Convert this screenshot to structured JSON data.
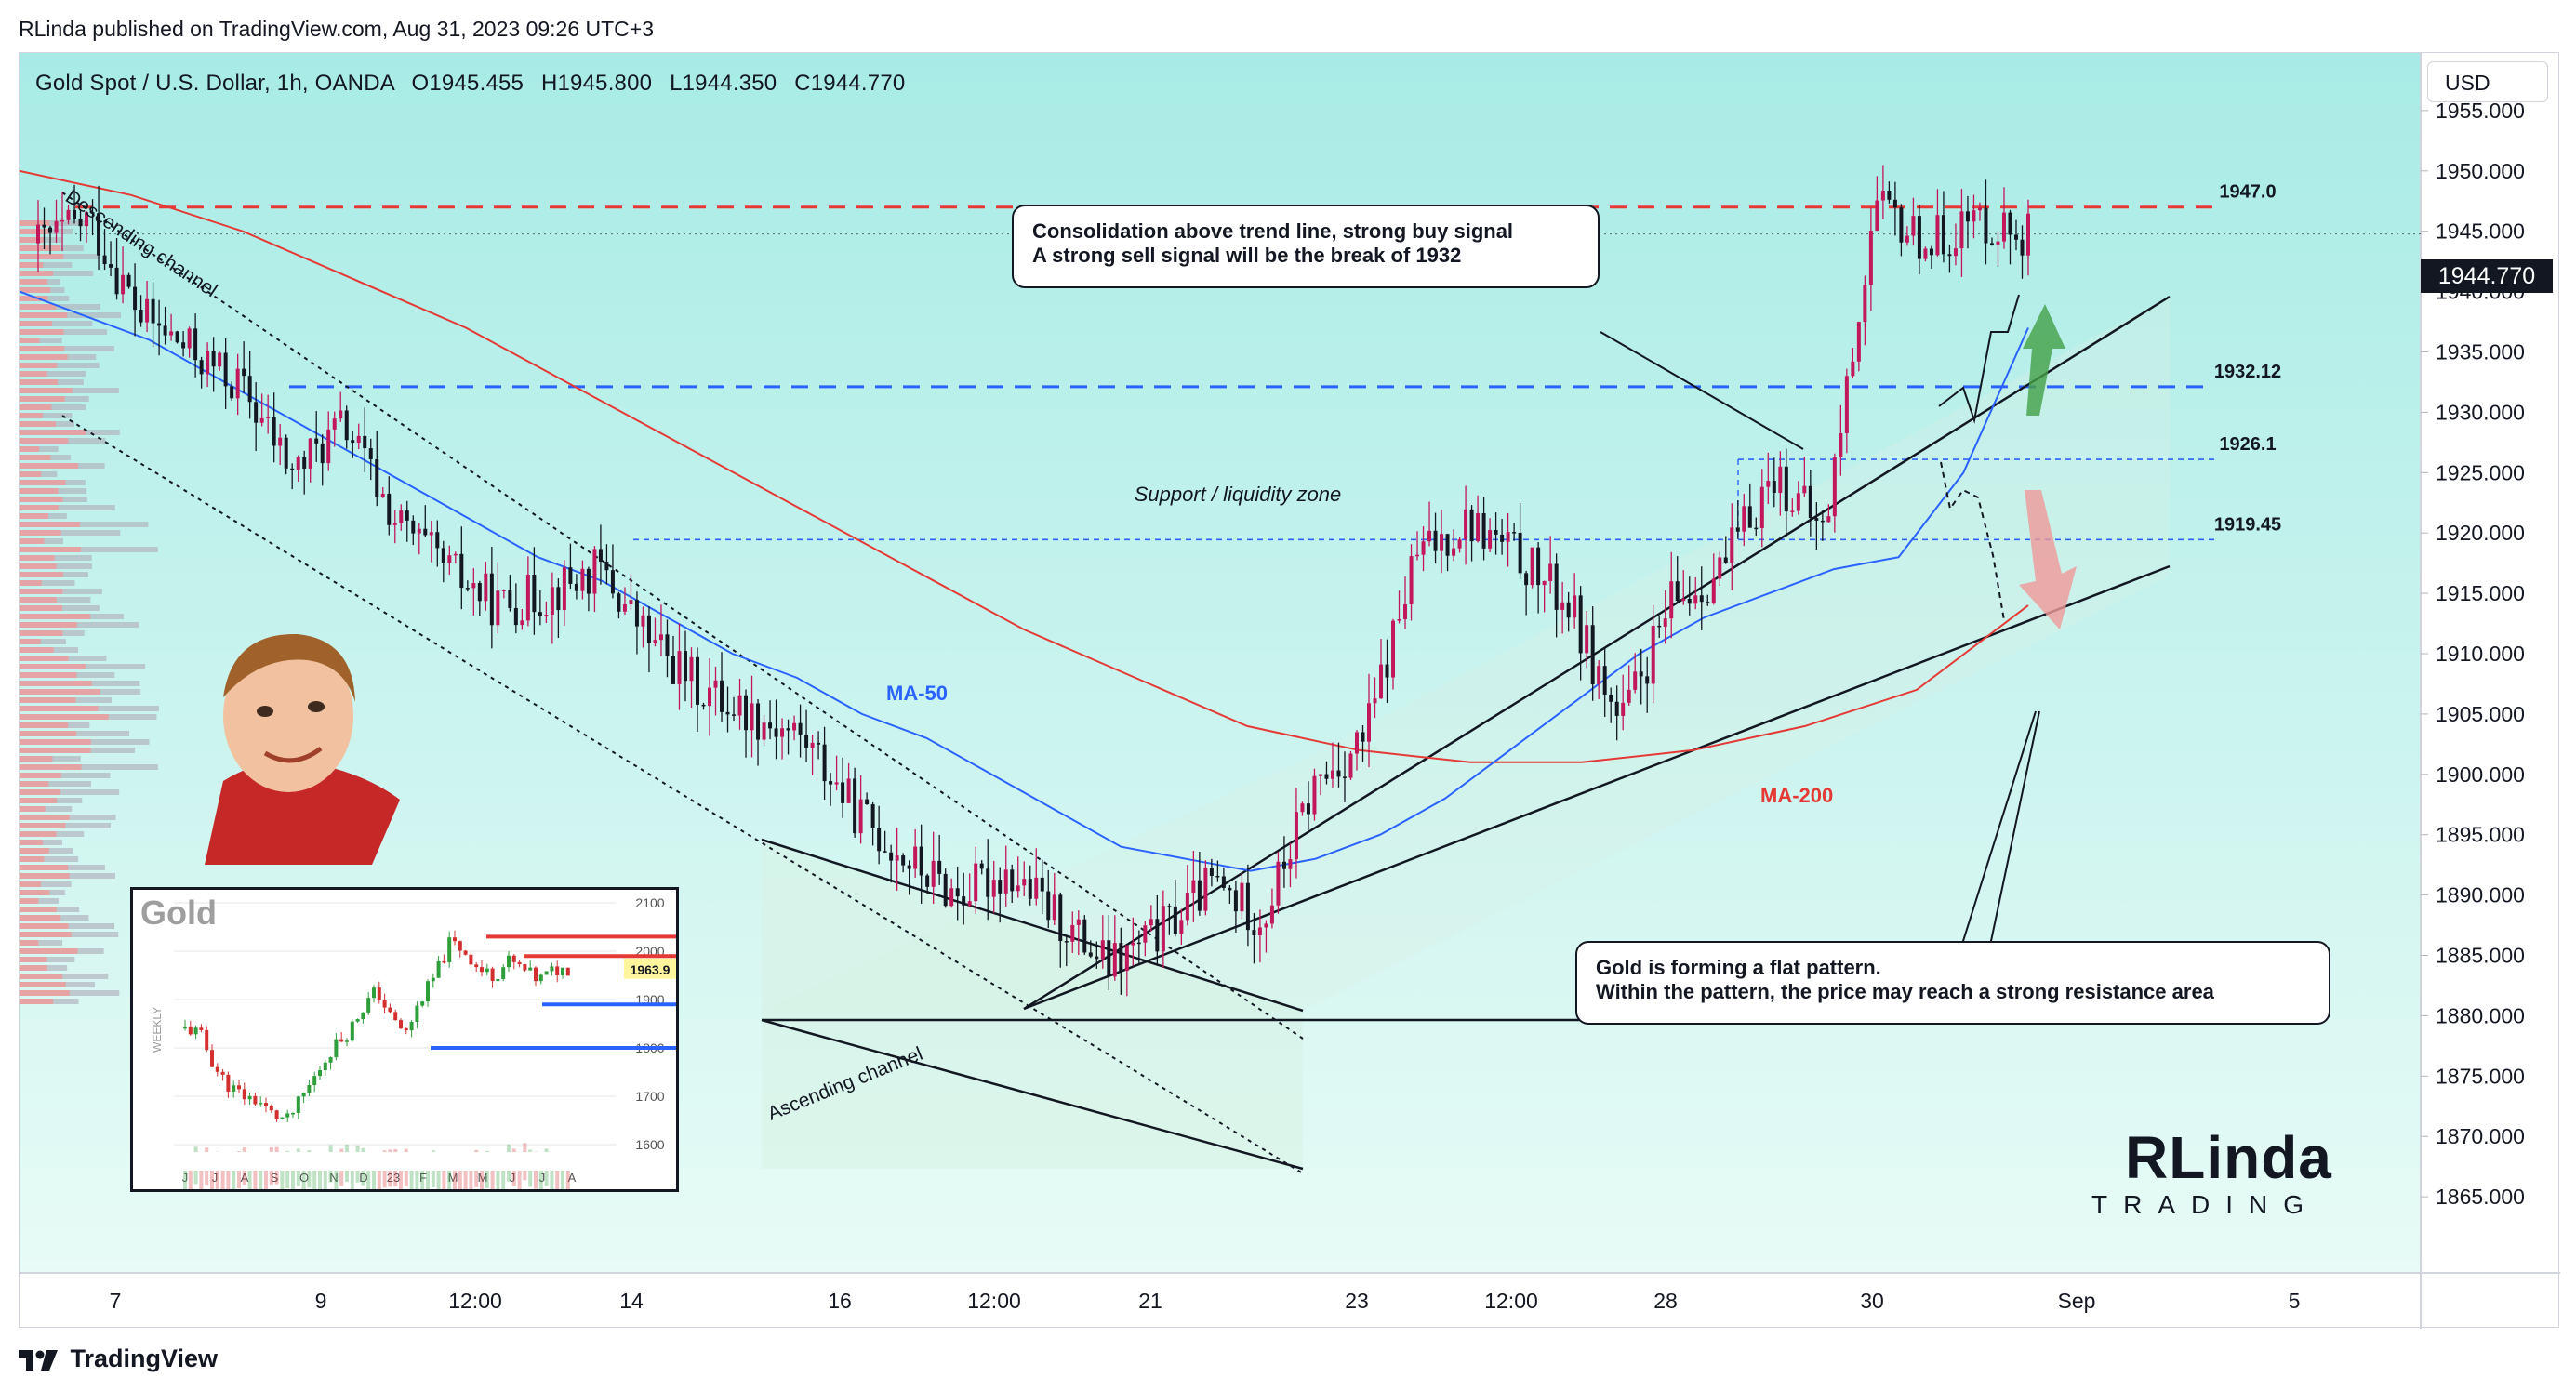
{
  "published": "RLinda published on TradingView.com, Aug 31, 2023 09:26 UTC+3",
  "header": {
    "symbol": "Gold Spot / U.S. Dollar, 1h, OANDA",
    "open": "O1945.455",
    "high": "H1945.800",
    "low": "L1944.350",
    "close": "C1944.770"
  },
  "currency": "USD",
  "last_price": "1944.770",
  "footer_brand": "TradingView",
  "annotations": {
    "top_callout": [
      "Consolidation above trend line, strong buy signal",
      "A strong sell signal will be the break of 1932"
    ],
    "bottom_callout": [
      "Gold is forming a flat pattern.",
      "Within the pattern, the price may reach a strong resistance area"
    ],
    "support_zone": "Support / liquidity zone",
    "descending_channel": "Descending channel",
    "ascending_channel": "Ascending channel",
    "ma50": "MA-50",
    "ma200": "MA-200"
  },
  "brand_logo": {
    "top": "RLinda",
    "bottom": "TRADING"
  },
  "colors": {
    "background_top": "#a8ebe6",
    "background_bottom": "#e8fbf6",
    "bull": "#c2185b",
    "bear": "#131722",
    "ma50": "#2962ff",
    "ma200": "#e53935",
    "resistance": "#e53935",
    "support": "#2962ff",
    "buy_arrow": "#43a047",
    "sell_arrow": "#ef9a9a"
  },
  "chart_data": {
    "type": "candlestick",
    "symbol": "Gold Spot / U.S. Dollar",
    "timeframe": "1h",
    "y_axis": {
      "ticks": [
        "1865.000",
        "1870.000",
        "1875.000",
        "1880.000",
        "1885.000",
        "1890.000",
        "1895.000",
        "1900.000",
        "1905.000",
        "1910.000",
        "1915.000",
        "1920.000",
        "1925.000",
        "1930.000",
        "1935.000",
        "1940.000",
        "1945.000",
        "1950.000",
        "1955.000"
      ],
      "range": [
        1860,
        1960
      ]
    },
    "x_axis": {
      "ticks": [
        "7",
        "9",
        "12:00",
        "14",
        "16",
        "12:00",
        "21",
        "23",
        "12:00",
        "28",
        "30",
        "Sep",
        "5"
      ]
    },
    "levels": [
      {
        "label": "1947.0",
        "value": 1947.0,
        "style": "dashed-red"
      },
      {
        "label": "1932.12",
        "value": 1932.12,
        "style": "dashed-blue"
      },
      {
        "label": "1926.1",
        "value": 1926.1,
        "style": "dotted-blue"
      },
      {
        "label": "1919.45",
        "value": 1919.45,
        "style": "dotted-blue"
      }
    ],
    "price_path": [
      1944,
      1946,
      1938,
      1935,
      1932,
      1925,
      1929,
      1921,
      1917,
      1914,
      1915,
      1917,
      1911,
      1907,
      1905,
      1903,
      1897,
      1893,
      1890,
      1892,
      1888,
      1884,
      1887,
      1891,
      1888,
      1899,
      1903,
      1918,
      1921,
      1918,
      1914,
      1904,
      1914,
      1917,
      1925,
      1920,
      1947,
      1944,
      1946,
      1944.77
    ],
    "ma50_path": [
      1940,
      1938,
      1936,
      1933,
      1930,
      1927,
      1924,
      1921,
      1918,
      1916,
      1913,
      1910,
      1908,
      1905,
      1903,
      1900,
      1897,
      1894,
      1893,
      1892,
      1893,
      1895,
      1898,
      1902,
      1906,
      1910,
      1913,
      1915,
      1917,
      1918,
      1925,
      1937
    ],
    "ma200_path": [
      1950,
      1948,
      1945,
      1941,
      1937,
      1932,
      1927,
      1922,
      1917,
      1912,
      1908,
      1904,
      1902,
      1901,
      1901,
      1902,
      1904,
      1907,
      1914
    ],
    "inset": {
      "title": "Gold",
      "period": "WEEKLY",
      "y_ticks": [
        "2100",
        "2000",
        "1900",
        "1800",
        "1700",
        "1600"
      ],
      "x_ticks": [
        "J",
        "J",
        "A",
        "S",
        "O",
        "N",
        "D",
        "23",
        "F",
        "M",
        "M",
        "J",
        "J",
        "A"
      ],
      "last_label": "1963.9",
      "path": [
        1840,
        1830,
        1760,
        1720,
        1700,
        1690,
        1660,
        1650,
        1700,
        1750,
        1800,
        1830,
        1880,
        1920,
        1860,
        1830,
        1900,
        1950,
        2020,
        2000,
        1960,
        1950,
        1980,
        1960,
        1940,
        1960,
        1963.9
      ]
    }
  }
}
